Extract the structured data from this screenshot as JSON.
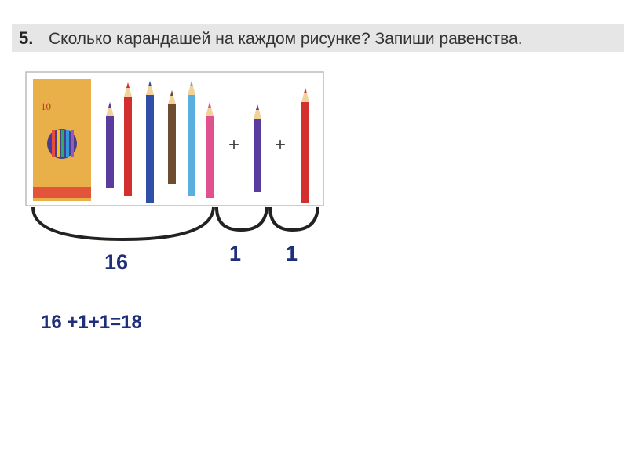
{
  "header": {
    "number": "5.",
    "text": "Сколько карандашей на каждом рисунке? Запиши равенства."
  },
  "picture": {
    "box_label": "10",
    "plus_signs": [
      "+",
      "+"
    ]
  },
  "group_labels": [
    "16",
    "1",
    "1"
  ],
  "equation": "16 +1+1=18"
}
